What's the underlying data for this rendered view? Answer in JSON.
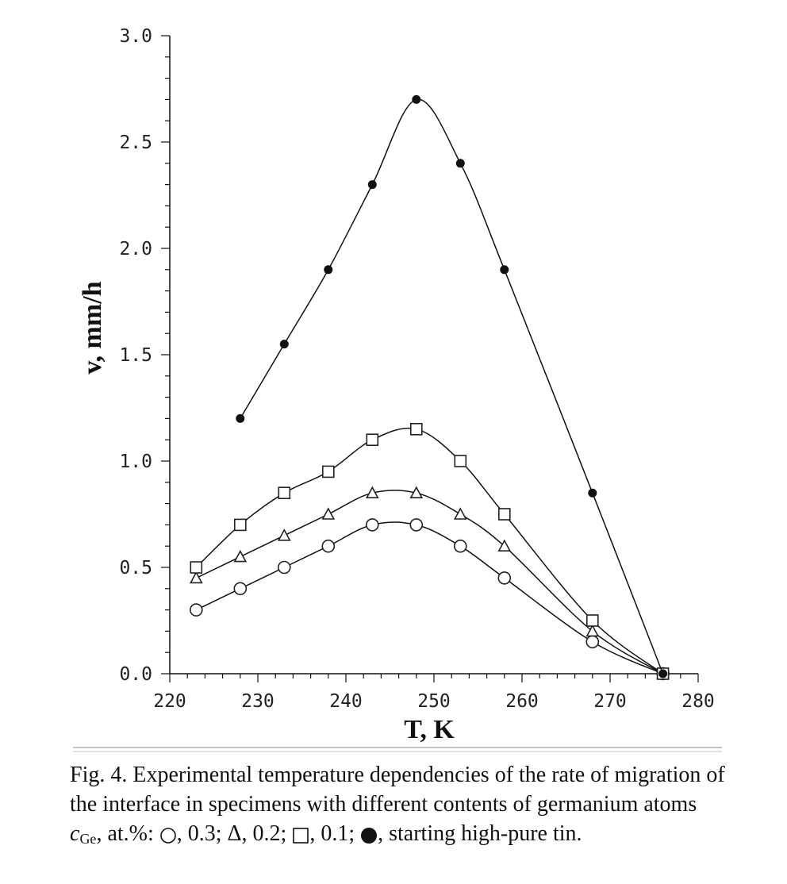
{
  "chart_data": {
    "type": "line",
    "title": "",
    "xlabel": "T,  K",
    "ylabel": "v,  mm/h",
    "xlim": [
      220,
      280
    ],
    "ylim": [
      0.0,
      3.0
    ],
    "x_ticks": [
      "220",
      "230",
      "240",
      "250",
      "260",
      "270",
      "280"
    ],
    "y_ticks": [
      "0.0",
      "0.5",
      "1.0",
      "1.5",
      "2.0",
      "2.5",
      "3.0"
    ],
    "grid": false,
    "legend": "none (described in caption)",
    "series": [
      {
        "marker": "circle-open",
        "x": [
          223,
          228,
          233,
          238,
          243,
          248,
          253,
          258,
          268,
          276
        ],
        "values": [
          0.3,
          0.4,
          0.5,
          0.6,
          0.7,
          0.7,
          0.6,
          0.45,
          0.15,
          0.0
        ]
      },
      {
        "marker": "triangle-open",
        "x": [
          223,
          228,
          233,
          238,
          243,
          248,
          253,
          258,
          268,
          276
        ],
        "values": [
          0.45,
          0.55,
          0.65,
          0.75,
          0.85,
          0.85,
          0.75,
          0.6,
          0.2,
          0.0
        ]
      },
      {
        "marker": "square-open",
        "x": [
          223,
          228,
          233,
          238,
          243,
          248,
          253,
          258,
          268,
          276
        ],
        "values": [
          0.5,
          0.7,
          0.85,
          0.95,
          1.1,
          1.15,
          1.0,
          0.75,
          0.25,
          0.0
        ]
      },
      {
        "marker": "circle-filled",
        "x": [
          228,
          233,
          238,
          243,
          248,
          253,
          258,
          268,
          276
        ],
        "values": [
          1.2,
          1.55,
          1.9,
          2.3,
          2.7,
          2.4,
          1.9,
          0.85,
          0.0
        ]
      }
    ]
  },
  "caption": {
    "line1": "Fig. 4. Experimental temperature dependencies of the rate of migration of",
    "line2": "the interface in specimens with different contents of germanium atoms",
    "line3_var": "c",
    "line3_sub": "Ge",
    "line3_a": ", at.%: ",
    "line3_b": ", 0.3; Δ, 0.2; ",
    "line3_c": ", 0.1; ",
    "line3_d": ", starting high-pure tin."
  }
}
